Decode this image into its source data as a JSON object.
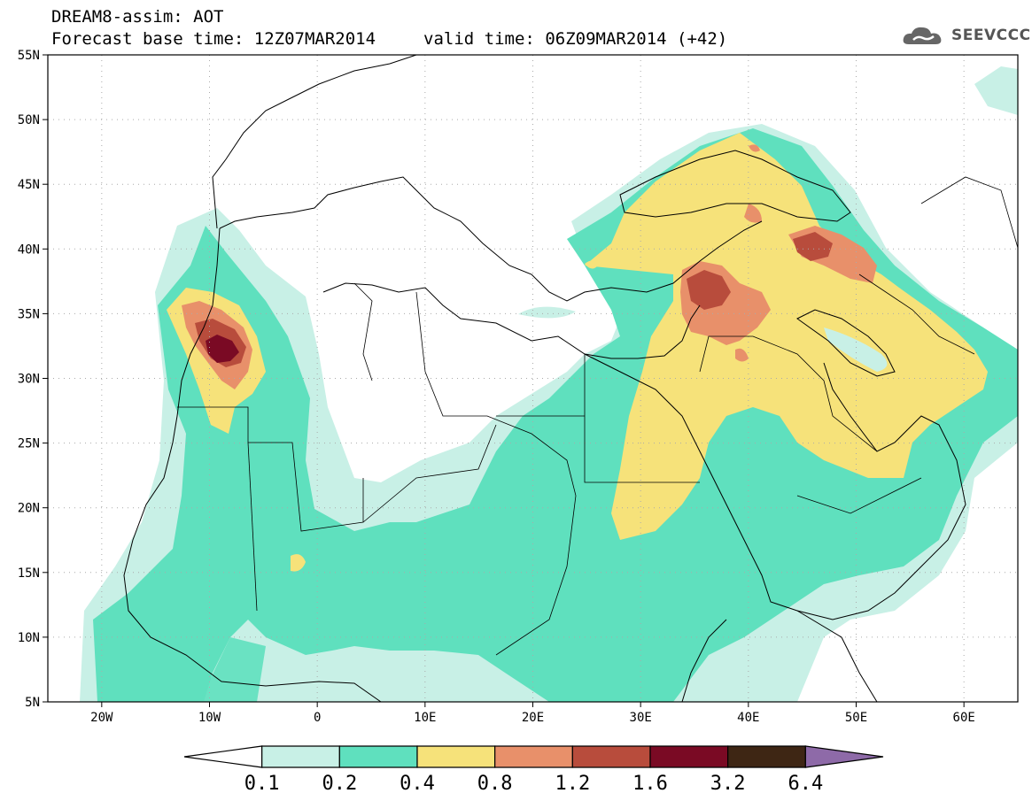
{
  "header": {
    "line1": "DREAM8-assim: AOT",
    "base_time": "Forecast base time: 12Z07MAR2014",
    "valid_time": "valid time: 06Z09MAR2014 (+42)"
  },
  "logo": {
    "text": "SEEVCCC",
    "icon": "cloud-icon"
  },
  "map": {
    "lon_range": [
      -25,
      65
    ],
    "lat_range": [
      5,
      55
    ],
    "lat_ticks": [
      {
        "v": 55,
        "label": "55N"
      },
      {
        "v": 50,
        "label": "50N"
      },
      {
        "v": 45,
        "label": "45N"
      },
      {
        "v": 40,
        "label": "40N"
      },
      {
        "v": 35,
        "label": "35N"
      },
      {
        "v": 30,
        "label": "30N"
      },
      {
        "v": 25,
        "label": "25N"
      },
      {
        "v": 20,
        "label": "20N"
      },
      {
        "v": 15,
        "label": "15N"
      },
      {
        "v": 10,
        "label": "10N"
      },
      {
        "v": 5,
        "label": "5N"
      }
    ],
    "lon_ticks": [
      {
        "v": -20,
        "label": "20W"
      },
      {
        "v": -10,
        "label": "10W"
      },
      {
        "v": 0,
        "label": "0"
      },
      {
        "v": 10,
        "label": "10E"
      },
      {
        "v": 20,
        "label": "20E"
      },
      {
        "v": 30,
        "label": "30E"
      },
      {
        "v": 40,
        "label": "40E"
      },
      {
        "v": 50,
        "label": "50E"
      },
      {
        "v": 60,
        "label": "60E"
      }
    ],
    "grid": "dotted"
  },
  "colorbar": {
    "colors": [
      "#ffffff",
      "#c8f0e6",
      "#5fe0be",
      "#f6e27a",
      "#e8906a",
      "#b84c3c",
      "#7a0a24",
      "#3e2614",
      "#8e6aa8"
    ],
    "labels": [
      "0.1",
      "0.2",
      "0.4",
      "0.8",
      "1.2",
      "1.6",
      "3.2",
      "6.4"
    ]
  }
}
